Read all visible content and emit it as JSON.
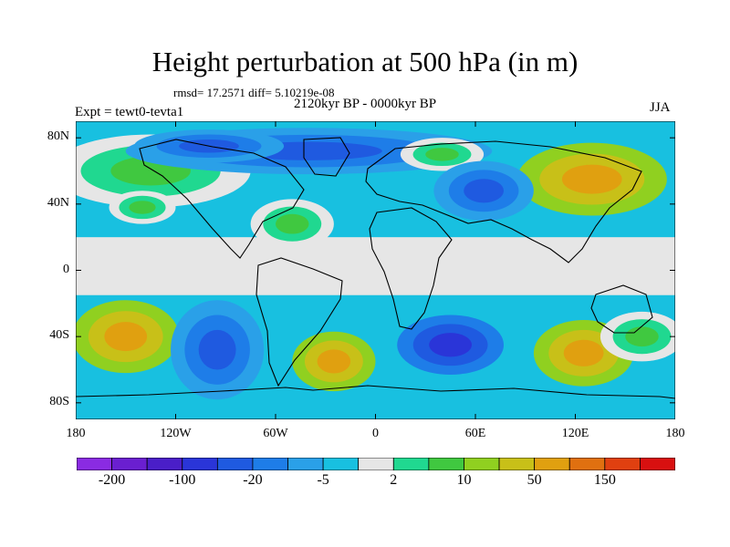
{
  "header": {
    "title": "Height perturbation at 500 hPa (in m)",
    "stats": "rmsd= 17.2571 diff= 5.10219e-08",
    "subtitle": "2120kyr BP - 0000kyr BP",
    "left_label": "Expt = tewt0-tevta1",
    "right_label": "JJA"
  },
  "map": {
    "projection": "cylindrical-equidistant",
    "lon_range": [
      -180,
      180
    ],
    "lat_range": [
      -90,
      90
    ],
    "lat_ticks": [
      {
        "value": 80,
        "label": "80N"
      },
      {
        "value": 40,
        "label": "40N"
      },
      {
        "value": 0,
        "label": "0"
      },
      {
        "value": -40,
        "label": "40S"
      },
      {
        "value": -80,
        "label": "80S"
      }
    ],
    "lon_ticks": [
      {
        "value": -180,
        "label": "180"
      },
      {
        "value": -120,
        "label": "120W"
      },
      {
        "value": -60,
        "label": "60W"
      },
      {
        "value": 0,
        "label": "0"
      },
      {
        "value": 60,
        "label": "60E"
      },
      {
        "value": 120,
        "label": "120E"
      },
      {
        "value": 180,
        "label": "180"
      }
    ],
    "colors": [
      "#8a2be2",
      "#6a1fd0",
      "#4a1ec8",
      "#2a35d8",
      "#1f5ae0",
      "#1e7de8",
      "#2aa0e8",
      "#18c0e0",
      "#e6e6e6",
      "#20d890",
      "#40c840",
      "#90d020",
      "#c8c018",
      "#e0a010",
      "#e07010",
      "#e04010",
      "#d81010"
    ],
    "regions": [
      {
        "name": "north-atlantic-high",
        "level": 10,
        "lon": -135,
        "lat": 60,
        "rlon": 60,
        "rlat": 22
      },
      {
        "name": "north-pole-low",
        "level": -20,
        "lon": -40,
        "lat": 72,
        "rlon": 110,
        "rlat": 14
      },
      {
        "name": "north-america-low",
        "level": -20,
        "lon": -100,
        "lat": 75,
        "rlon": 45,
        "rlat": 10
      },
      {
        "name": "siberia-high",
        "level": 50,
        "lon": 130,
        "lat": 55,
        "rlon": 45,
        "rlat": 22
      },
      {
        "name": "europe-high",
        "level": 10,
        "lon": 40,
        "lat": 70,
        "rlon": 25,
        "rlat": 10
      },
      {
        "name": "asia-low",
        "level": -20,
        "lon": 65,
        "lat": 48,
        "rlon": 30,
        "rlat": 18
      },
      {
        "name": "atlantic-high",
        "level": 10,
        "lon": -50,
        "lat": 28,
        "rlon": 25,
        "rlat": 15
      },
      {
        "name": "pacific-high",
        "level": 10,
        "lon": -140,
        "lat": 38,
        "rlon": 20,
        "rlat": 10
      },
      {
        "name": "south-pacific-high",
        "level": 50,
        "lon": -150,
        "lat": -40,
        "rlon": 32,
        "rlat": 22
      },
      {
        "name": "south-america-low",
        "level": -20,
        "lon": -95,
        "lat": -48,
        "rlon": 28,
        "rlat": 30
      },
      {
        "name": "south-atlantic-high",
        "level": 50,
        "lon": -25,
        "lat": -55,
        "rlon": 25,
        "rlat": 18
      },
      {
        "name": "indian-ocean-low",
        "level": -100,
        "lon": 45,
        "lat": -45,
        "rlon": 32,
        "rlat": 18
      },
      {
        "name": "australia-high",
        "level": 50,
        "lon": 125,
        "lat": -50,
        "rlon": 30,
        "rlat": 20
      },
      {
        "name": "south-high-east",
        "level": 10,
        "lon": 160,
        "lat": -40,
        "rlon": 25,
        "rlat": 15
      }
    ]
  },
  "colorbar": {
    "labels": [
      {
        "text": "-200",
        "index": 1
      },
      {
        "text": "-100",
        "index": 3
      },
      {
        "text": "-20",
        "index": 5
      },
      {
        "text": "-5",
        "index": 7
      },
      {
        "text": "2",
        "index": 9
      },
      {
        "text": "10",
        "index": 11
      },
      {
        "text": "50",
        "index": 13
      },
      {
        "text": "150",
        "index": 15
      }
    ]
  }
}
